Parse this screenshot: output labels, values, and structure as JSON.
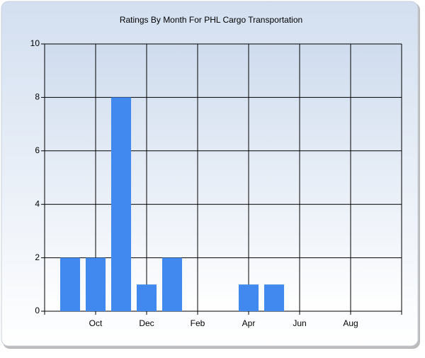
{
  "chart_data": {
    "type": "bar",
    "title": "Ratings By Month For PHL Cargo Transportation",
    "categories": [
      null,
      "Oct",
      null,
      "Dec",
      null,
      "Feb",
      null,
      "Apr",
      null,
      "Jun",
      null,
      "Aug",
      null
    ],
    "values": [
      2,
      2,
      8,
      1,
      2,
      0,
      0,
      1,
      1,
      0,
      0,
      0,
      0
    ],
    "color": "#4189ee",
    "ylim": [
      0,
      10
    ],
    "yticks": [
      0,
      2,
      4,
      6,
      8,
      10
    ],
    "grid": true
  }
}
